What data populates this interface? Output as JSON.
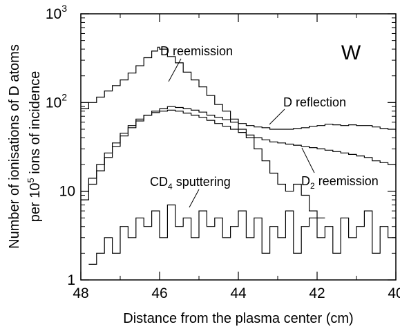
{
  "chart_data": {
    "type": "line",
    "step": true,
    "title": "",
    "xlabel": "Distance from the plasma center (cm)",
    "ylabel": {
      "line1": "Number of ionisations of D atoms",
      "line2_prefix": "per 10",
      "line2_sup": "5",
      "line2_suffix": " ions of incidence"
    },
    "x_axis": {
      "range": [
        48,
        40
      ],
      "reversed": true,
      "ticks": [
        {
          "value": 48,
          "label": "48"
        },
        {
          "value": 46,
          "label": "46"
        },
        {
          "value": 44,
          "label": "44"
        },
        {
          "value": 42,
          "label": "42"
        },
        {
          "value": 40,
          "label": "40"
        }
      ]
    },
    "y_axis": {
      "scale": "log",
      "range": [
        1,
        1000
      ],
      "ticks": [
        {
          "value": 1,
          "label": "1",
          "sup": ""
        },
        {
          "value": 10,
          "label": "10",
          "sup": ""
        },
        {
          "value": 100,
          "label": "10",
          "sup": "2"
        },
        {
          "value": 1000,
          "label": "10",
          "sup": "3"
        }
      ]
    },
    "grid": false,
    "panel_label": "W",
    "series": [
      {
        "name": "D reemission",
        "x": [
          48,
          47.8,
          47.6,
          47.4,
          47.2,
          47,
          46.8,
          46.6,
          46.4,
          46.2,
          46.05,
          46,
          45.8,
          45.6,
          45.4,
          45.2,
          45,
          44.8,
          44.6,
          44.4,
          44.2,
          44,
          43.8,
          43.6,
          43.4,
          43.2,
          43,
          42.8,
          42.6,
          42.4,
          42.2,
          42
        ],
        "y": [
          85,
          100,
          115,
          135,
          155,
          180,
          215,
          260,
          320,
          380,
          420,
          400,
          330,
          280,
          220,
          180,
          150,
          120,
          95,
          80,
          65,
          50,
          40,
          30,
          22,
          16,
          12,
          10,
          12,
          9,
          6,
          5
        ]
      },
      {
        "name": "D reflection",
        "x": [
          48,
          47.8,
          47.6,
          47.4,
          47.2,
          47,
          46.8,
          46.6,
          46.4,
          46.2,
          46,
          45.8,
          45.6,
          45.4,
          45.2,
          45,
          44.8,
          44.6,
          44.4,
          44.2,
          44,
          43.8,
          43.6,
          43.4,
          43.2,
          43,
          42.8,
          42.6,
          42.4,
          42.2,
          42,
          41.8,
          41.6,
          41.4,
          41.2,
          41,
          40.8,
          40.6,
          40.4,
          40.2,
          40
        ],
        "y": [
          8,
          12,
          17,
          24,
          32,
          42,
          52,
          62,
          72,
          80,
          85,
          90,
          88,
          85,
          82,
          78,
          72,
          68,
          64,
          60,
          58,
          55,
          53,
          52,
          50,
          50,
          50,
          51,
          52,
          54,
          55,
          57,
          56,
          55,
          56,
          55,
          55,
          53,
          51,
          50,
          47
        ]
      },
      {
        "name": "D2 reemission",
        "x": [
          48,
          47.8,
          47.6,
          47.4,
          47.2,
          47,
          46.8,
          46.6,
          46.4,
          46.2,
          46,
          45.8,
          45.6,
          45.4,
          45.2,
          45,
          44.8,
          44.6,
          44.4,
          44.2,
          44,
          43.8,
          43.6,
          43.4,
          43.2,
          43,
          42.8,
          42.6,
          42.4,
          42.2,
          42,
          41.8,
          41.6,
          41.4,
          41.2,
          41,
          40.8,
          40.6,
          40.4,
          40.2,
          40
        ],
        "y": [
          10,
          14,
          20,
          27,
          35,
          45,
          55,
          65,
          72,
          77,
          80,
          82,
          80,
          76,
          72,
          68,
          63,
          58,
          54,
          50,
          46,
          43,
          40,
          38,
          36,
          35,
          34,
          33,
          32,
          31,
          30,
          29,
          28,
          27,
          26,
          25,
          24,
          22,
          21,
          20,
          19
        ]
      },
      {
        "name": "CD4 sputtering",
        "x": [
          47.8,
          47.6,
          47.4,
          47.2,
          47,
          46.8,
          46.6,
          46.4,
          46.2,
          46,
          45.8,
          45.6,
          45.4,
          45.2,
          45,
          44.8,
          44.6,
          44.4,
          44.2,
          44,
          43.8,
          43.6,
          43.4,
          43.2,
          43,
          42.8,
          42.6,
          42.4,
          42.2,
          42,
          41.8,
          41.6,
          41.4,
          41.2,
          41,
          40.8,
          40.6,
          40.4,
          40.2,
          40
        ],
        "y": [
          1.5,
          2,
          3,
          2,
          4,
          3,
          5,
          4,
          6,
          3,
          7,
          4,
          5,
          3,
          6,
          4,
          5,
          3,
          4,
          6,
          3,
          5,
          2,
          4,
          3,
          6,
          2,
          4,
          5,
          3,
          4,
          2,
          5,
          3,
          4,
          6,
          2,
          4,
          3,
          5
        ]
      }
    ],
    "annotations": [
      {
        "text": "D reemission",
        "sub": ""
      },
      {
        "text": "D reflection",
        "sub": ""
      },
      {
        "text": "CD",
        "sub": "4",
        "suffix": " sputtering"
      },
      {
        "text": "D",
        "sub": "2",
        "suffix": " reemission"
      }
    ]
  }
}
